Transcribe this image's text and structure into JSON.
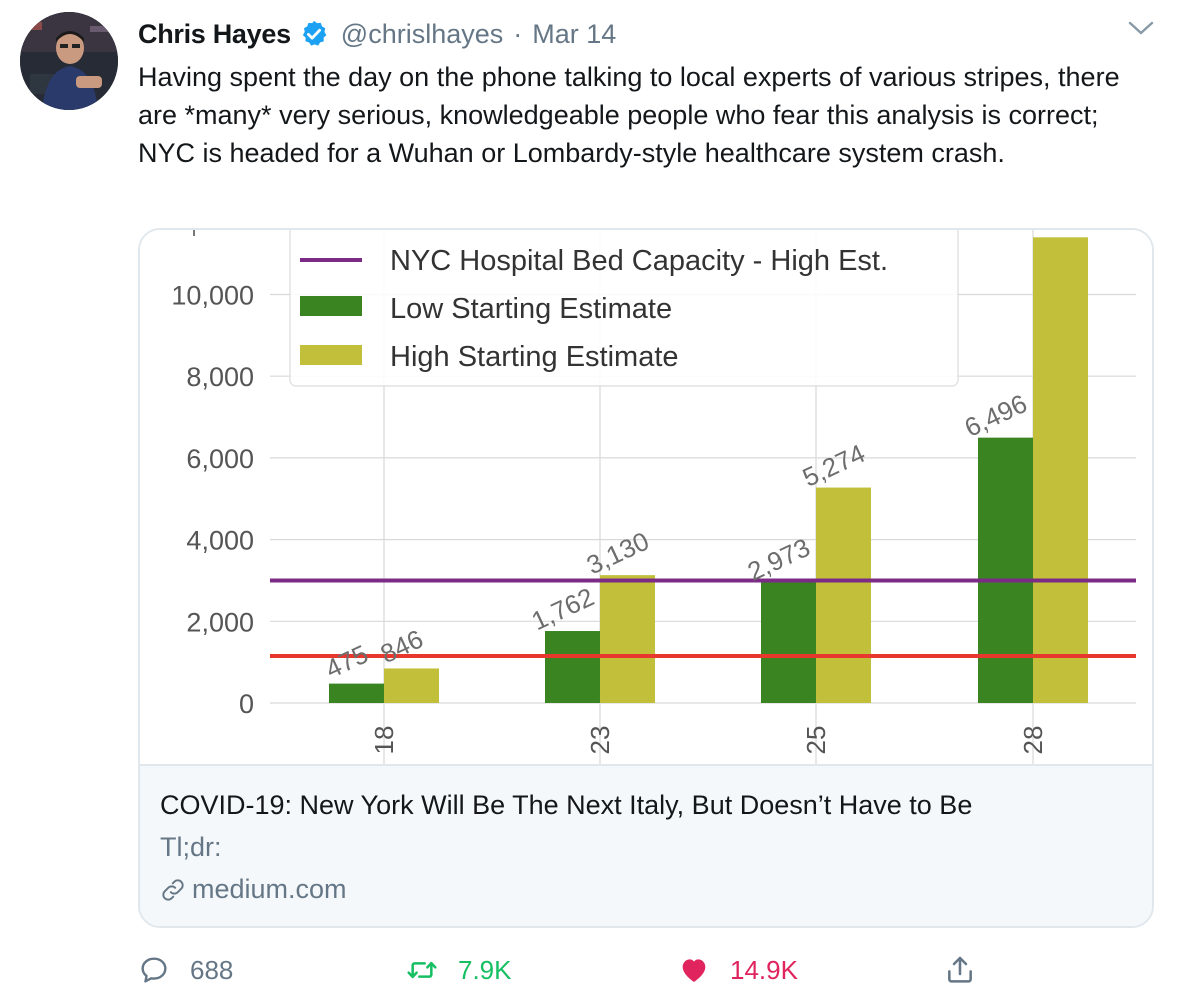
{
  "tweet": {
    "author_name": "Chris Hayes",
    "handle": "@chrislhayes",
    "separator": "·",
    "date": "Mar 14",
    "text": "Having spent the day on the phone talking to local experts of various stripes, there are *many* very serious, knowledgeable people who fear this analysis is correct; NYC is headed for a Wuhan or Lombardy-style healthcare system crash."
  },
  "card": {
    "title": "COVID-19: New York Will Be The Next Italy, But Doesn’t Have to Be",
    "description": "Tl;dr:",
    "domain": "medium.com"
  },
  "actions": {
    "replies": "688",
    "retweets": "7.9K",
    "likes": "14.9K"
  },
  "icons": {
    "verified": "verified-badge-icon",
    "caret": "chevron-down-icon",
    "reply": "comment-icon",
    "retweet": "retweet-icon",
    "like": "heart-icon",
    "share": "share-icon",
    "link": "link-icon"
  },
  "colors": {
    "verified": "#1da1f2",
    "retweet": "#17bf63",
    "like": "#e0245e",
    "muted": "#657786",
    "low_bar": "#3a8522",
    "high_bar": "#c2c03a",
    "capacity_line": "#7b2a86",
    "red_line": "#e8372c"
  },
  "chart_data": {
    "type": "bar",
    "categories": [
      "18",
      "23",
      "25",
      "28"
    ],
    "series": [
      {
        "name": "Low Starting Estimate",
        "values": [
          475,
          1762,
          2973,
          6496
        ],
        "labels": [
          "475",
          "1,762",
          "2,973",
          "6,496"
        ]
      },
      {
        "name": "High Starting Estimate",
        "values": [
          846,
          3130,
          5274,
          11400
        ],
        "labels": [
          "846",
          "3,130",
          "5,274",
          ""
        ]
      }
    ],
    "hlines": [
      {
        "name": "NYC Hospital Bed Capacity - High Est.",
        "value": 3000,
        "color": "#7b2a86"
      },
      {
        "name": "",
        "value": 1150,
        "color": "#e8372c"
      }
    ],
    "legend": [
      "NYC Hospital Bed Capacity - High Est.",
      "Low Starting Estimate",
      "High Starting Estimate"
    ],
    "legend_placement": "top-left",
    "ytick_labels": [
      "0",
      "2,000",
      "4,000",
      "6,000",
      "8,000",
      "10,000"
    ],
    "yticks": [
      0,
      2000,
      4000,
      6000,
      8000,
      10000
    ],
    "ylim": [
      0,
      11500
    ],
    "grid": true
  }
}
